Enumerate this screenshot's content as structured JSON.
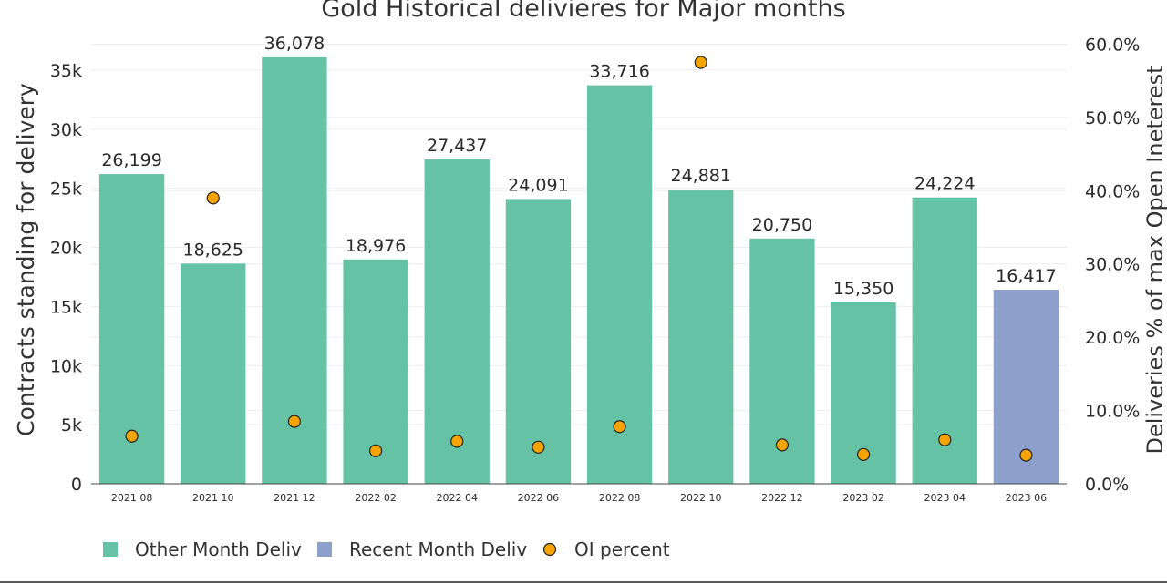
{
  "chart_data": {
    "type": "bar",
    "title": "Gold Historical delivieres for Major months",
    "ylabel": "Contracts standing for delivery",
    "y2label": "Deliveries % of max Open Ineterest",
    "categories": [
      "2021 08",
      "2021 10",
      "2021 12",
      "2022 02",
      "2022 04",
      "2022 06",
      "2022 08",
      "2022 10",
      "2022 12",
      "2023 02",
      "2023 04",
      "2023 06"
    ],
    "values": [
      26199,
      18625,
      36078,
      18976,
      27437,
      24091,
      33716,
      24881,
      20750,
      15350,
      24224,
      16417
    ],
    "value_labels": [
      "26,199",
      "18,625",
      "36,078",
      "18,976",
      "27,437",
      "24,091",
      "33,716",
      "24,881",
      "20,750",
      "15,350",
      "24,224",
      "16,417"
    ],
    "bar_series": [
      "Other Month Deliv",
      "Other Month Deliv",
      "Other Month Deliv",
      "Other Month Deliv",
      "Other Month Deliv",
      "Other Month Deliv",
      "Other Month Deliv",
      "Other Month Deliv",
      "Other Month Deliv",
      "Other Month Deliv",
      "Other Month Deliv",
      "Recent Month Deliv"
    ],
    "oi_percent": [
      6.5,
      39.0,
      8.5,
      4.5,
      5.8,
      5.0,
      7.8,
      57.5,
      5.3,
      4.0,
      6.0,
      3.9
    ],
    "ylim": [
      0,
      38000
    ],
    "y2lim": [
      0,
      61.3
    ],
    "yticks": [
      0,
      5000,
      10000,
      15000,
      20000,
      25000,
      30000,
      35000
    ],
    "ytick_labels": [
      "0",
      "5k",
      "10k",
      "15k",
      "20k",
      "25k",
      "30k",
      "35k"
    ],
    "y2ticks": [
      0,
      10,
      20,
      30,
      40,
      50,
      60
    ],
    "y2tick_labels": [
      "0.0%",
      "10.0%",
      "20.0%",
      "30.0%",
      "40.0%",
      "50.0%",
      "60.0%"
    ],
    "grid": true,
    "legend_position": "bottom-left",
    "legend": [
      {
        "name": "Other Month Deliv",
        "kind": "bar"
      },
      {
        "name": "Recent Month Deliv",
        "kind": "bar"
      },
      {
        "name": "OI percent",
        "kind": "marker"
      }
    ],
    "colors": {
      "Other Month Deliv": "#66c2a5",
      "Recent Month Deliv": "#8da0cb",
      "OI percent": "#f5a300",
      "marker_edge": "#222222",
      "grid": "#eeeeee",
      "axis": "#444444"
    }
  }
}
